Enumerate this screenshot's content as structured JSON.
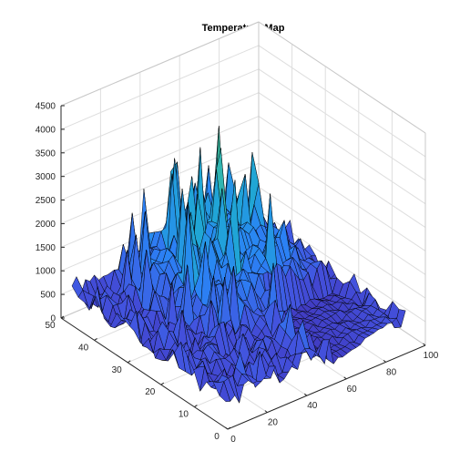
{
  "chart_data": {
    "type": "surface",
    "title": "Temperature Map",
    "xlabel": "",
    "ylabel": "",
    "zlabel": "",
    "xlim": [
      0,
      100
    ],
    "ylim": [
      0,
      50
    ],
    "zlim": [
      0,
      4500
    ],
    "x_ticks": [
      0,
      20,
      40,
      60,
      80,
      100
    ],
    "y_ticks": [
      0,
      10,
      20,
      30,
      40,
      50
    ],
    "z_ticks": [
      0,
      500,
      1000,
      1500,
      2000,
      2500,
      3000,
      3500,
      4000,
      4500
    ],
    "grid": true,
    "colormap": "parula",
    "colors": {
      "low": "#3e26a8",
      "mid": "#2ab7b0",
      "high": "#f9fb0e",
      "edge": "#000000",
      "axis": "#262626",
      "grid": "#dedede"
    },
    "peaks": [
      {
        "x": 62,
        "y": 50,
        "z": 3500
      },
      {
        "x": 37,
        "y": 32,
        "z": 3450
      },
      {
        "x": 50,
        "y": 40,
        "z": 3000
      },
      {
        "x": 58,
        "y": 43,
        "z": 2600
      },
      {
        "x": 44,
        "y": 30,
        "z": 2800
      },
      {
        "x": 70,
        "y": 38,
        "z": 2400
      }
    ]
  }
}
